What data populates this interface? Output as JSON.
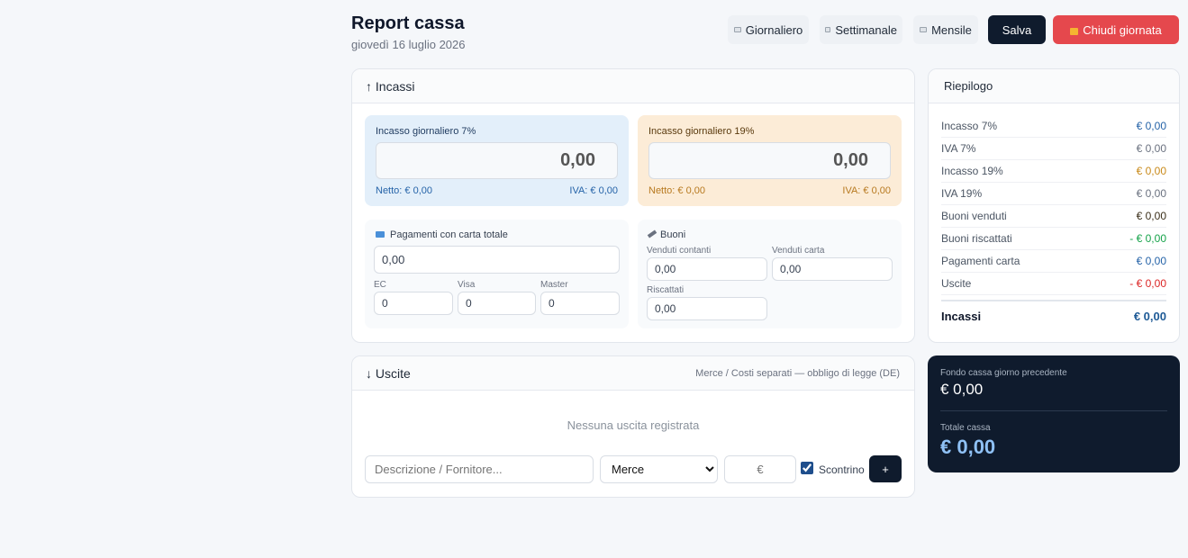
{
  "header": {
    "title": "Report cassa",
    "date": "giovedì 16 luglio 2026"
  },
  "toolbar": {
    "buttons": [
      "Giornaliero",
      "Settimanale",
      "Mensile",
      "Salva",
      "Chiudi giornata"
    ]
  },
  "incassi": {
    "title": "↑ Incassi",
    "vat7": {
      "label": "Incasso giornaliero 7%",
      "value": "0,00",
      "net": "Netto: € 0,00",
      "vat": "IVA: € 0,00"
    },
    "vat19": {
      "label": "Incasso giornaliero 19%",
      "value": "0,00",
      "net": "Netto: € 0,00",
      "vat": "IVA: € 0,00"
    },
    "card": {
      "label": "Pagamenti con carta totale",
      "value": "0,00",
      "fields": [
        {
          "label": "EC",
          "value": "0"
        },
        {
          "label": "Visa",
          "value": "0"
        },
        {
          "label": "Master",
          "value": "0"
        }
      ]
    },
    "vouchers": {
      "label": "Buoni",
      "fields": [
        {
          "label": "Venduti contanti",
          "value": "0,00"
        },
        {
          "label": "Venduti carta",
          "value": "0,00"
        },
        {
          "label": "Riscattati",
          "value": "0,00"
        }
      ]
    }
  },
  "uscite": {
    "title": "↓ Uscite",
    "note": "Merce / Costi separati — obbligo di legge (DE)",
    "empty": "Nessuna uscita registrata",
    "description_placeholder": "Descrizione / Fornitore...",
    "category": "Merce",
    "amount_placeholder": "€",
    "receipt": "Scontrino",
    "add": "+"
  },
  "summary": {
    "title": "Riepilogo",
    "rows": [
      {
        "label": "Incasso 7%",
        "value": "€ 0,00"
      },
      {
        "label": "IVA 7%",
        "value": "€ 0,00"
      },
      {
        "label": "Incasso 19%",
        "value": "€ 0,00"
      },
      {
        "label": "IVA 19%",
        "value": "€ 0,00"
      },
      {
        "label": "Buoni venduti",
        "value": "€ 0,00"
      },
      {
        "label": "Buoni riscattati",
        "value": "- € 0,00"
      },
      {
        "label": "Pagamenti carta",
        "value": "€ 0,00"
      },
      {
        "label": "Uscite",
        "value": "- € 0,00"
      }
    ],
    "total": {
      "label": "Incassi",
      "value": "€ 0,00"
    }
  },
  "cash": {
    "previous_label": "Fondo cassa giorno precedente",
    "previous_value": "€ 0,00",
    "total_label": "Totale cassa",
    "total_value": "€ 0,00"
  }
}
